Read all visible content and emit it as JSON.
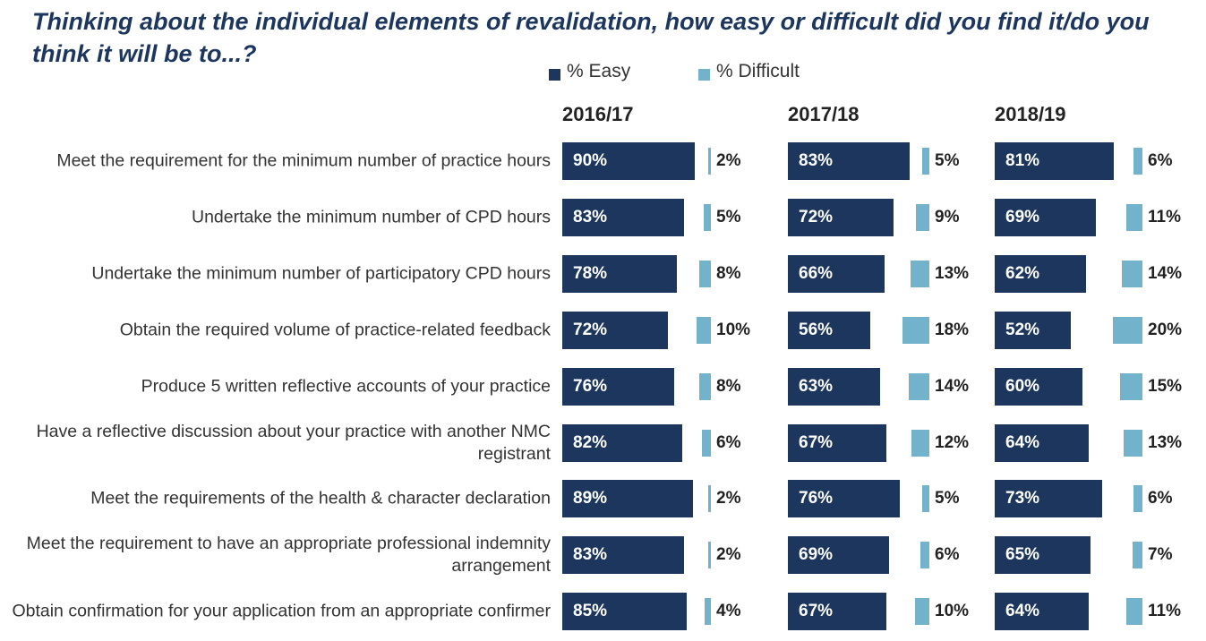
{
  "chart_data": {
    "type": "bar",
    "orientation": "horizontal",
    "title": "Thinking about the individual elements of revalidation, how easy or difficult did you find it/do you think it will be to...?",
    "categories": [
      "Meet the requirement for the minimum number of practice hours",
      "Undertake the minimum number of CPD hours",
      "Undertake the minimum number of participatory CPD hours",
      "Obtain the required volume of practice-related feedback",
      "Produce 5 written reflective accounts of your practice",
      "Have a reflective discussion about your practice with another NMC registrant",
      "Meet the requirements of the health & character declaration",
      "Meet the requirement to have an appropriate professional indemnity arrangement",
      "Obtain confirmation for your application from an appropriate confirmer"
    ],
    "series": [
      {
        "name": "% Easy",
        "color": "#1c365e"
      },
      {
        "name": "% Difficult",
        "color": "#72b3cb"
      }
    ],
    "panels": [
      {
        "title": "2016/17",
        "series": [
          {
            "values": [
              90,
              83,
              78,
              72,
              76,
              82,
              89,
              83,
              85
            ],
            "value_labels": [
              "90%",
              "83%",
              "78%",
              "72%",
              "76%",
              "82%",
              "89%",
              "83%",
              "85%"
            ]
          },
          {
            "values": [
              2,
              5,
              8,
              10,
              8,
              6,
              2,
              2,
              4
            ],
            "value_labels": [
              "2%",
              "5%",
              "8%",
              "10%",
              "8%",
              "6%",
              "2%",
              "2%",
              "4%"
            ]
          }
        ]
      },
      {
        "title": "2017/18",
        "series": [
          {
            "values": [
              83,
              72,
              66,
              56,
              63,
              67,
              76,
              69,
              67
            ],
            "value_labels": [
              "83%",
              "72%",
              "66%",
              "56%",
              "63%",
              "67%",
              "76%",
              "69%",
              "67%"
            ]
          },
          {
            "values": [
              5,
              9,
              13,
              18,
              14,
              12,
              5,
              6,
              10
            ],
            "value_labels": [
              "5%",
              "9%",
              "13%",
              "18%",
              "14%",
              "12%",
              "5%",
              "6%",
              "10%"
            ]
          }
        ]
      },
      {
        "title": "2018/19",
        "series": [
          {
            "values": [
              81,
              69,
              62,
              52,
              60,
              64,
              73,
              65,
              64
            ],
            "value_labels": [
              "81%",
              "69%",
              "62%",
              "52%",
              "60%",
              "64%",
              "73%",
              "65%",
              "64%"
            ]
          },
          {
            "values": [
              6,
              11,
              14,
              20,
              15,
              13,
              6,
              7,
              11
            ],
            "value_labels": [
              "6%",
              "11%",
              "14%",
              "20%",
              "15%",
              "13%",
              "6%",
              "7%",
              "11%"
            ]
          }
        ]
      }
    ]
  }
}
